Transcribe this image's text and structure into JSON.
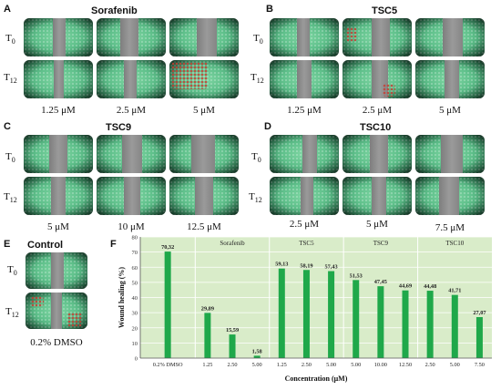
{
  "panels": {
    "A": {
      "letter": "A",
      "title": "Sorafenib",
      "rows": [
        "T0",
        "T12"
      ],
      "concentrations": [
        "1.25 μM",
        "2.5 μM",
        "5 μM"
      ]
    },
    "B": {
      "letter": "B",
      "title": "TSC5",
      "rows": [
        "T0",
        "T12"
      ],
      "concentrations": [
        "1.25 μM",
        "2.5 μM",
        "5 μM"
      ]
    },
    "C": {
      "letter": "C",
      "title": "TSC9",
      "rows": [
        "T0",
        "T12"
      ],
      "concentrations": [
        "5 μM",
        "10 μM",
        "12.5 μM"
      ]
    },
    "D": {
      "letter": "D",
      "title": "TSC10",
      "rows": [
        "T0",
        "T12"
      ],
      "concentrations": [
        "2.5 μM",
        "5 μM",
        "7.5 μM"
      ]
    },
    "E": {
      "letter": "E",
      "title": "Control",
      "rows": [
        "T0",
        "T12"
      ],
      "concentrations": [
        "0.2% DMSO"
      ]
    }
  },
  "chart_letter": "F",
  "chart_data": {
    "type": "bar",
    "xlabel": "Concentration (μM)",
    "ylabel": "Wound healing (%)",
    "ylim": [
      0,
      80
    ],
    "yticks": [
      0,
      10,
      20,
      30,
      40,
      50,
      60,
      70,
      80
    ],
    "grid": true,
    "bar_color": "#1fa84a",
    "background_color": "#d9ecc9",
    "groups": [
      {
        "name": "",
        "categories": [
          "0.2% DMSO"
        ],
        "values": [
          70.32
        ],
        "labels": [
          "70,32"
        ]
      },
      {
        "name": "Sorafenib",
        "categories": [
          "1.25",
          "2.50",
          "5.00"
        ],
        "values": [
          29.89,
          15.59,
          1.58
        ],
        "labels": [
          "29,89",
          "15,59",
          "1,58"
        ]
      },
      {
        "name": "TSC5",
        "categories": [
          "1.25",
          "2.50",
          "5.00"
        ],
        "values": [
          59.13,
          58.19,
          57.43
        ],
        "labels": [
          "59,13",
          "58,19",
          "57,43"
        ]
      },
      {
        "name": "TSC9",
        "categories": [
          "5.00",
          "10.00",
          "12.50"
        ],
        "values": [
          51.53,
          47.45,
          44.69
        ],
        "labels": [
          "51,53",
          "47,45",
          "44,69"
        ]
      },
      {
        "name": "TSC10",
        "categories": [
          "2.50",
          "5.00",
          "7.50"
        ],
        "values": [
          44.48,
          41.71,
          27.07
        ],
        "labels": [
          "44,48",
          "41,71",
          "27,07"
        ]
      }
    ]
  }
}
